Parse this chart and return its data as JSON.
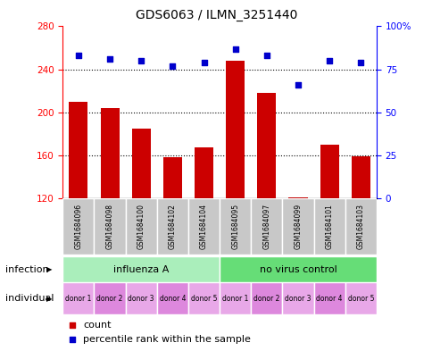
{
  "title": "GDS6063 / ILMN_3251440",
  "samples": [
    "GSM1684096",
    "GSM1684098",
    "GSM1684100",
    "GSM1684102",
    "GSM1684104",
    "GSM1684095",
    "GSM1684097",
    "GSM1684099",
    "GSM1684101",
    "GSM1684103"
  ],
  "counts": [
    210,
    204,
    185,
    158,
    167,
    248,
    218,
    121,
    170,
    159
  ],
  "percentiles": [
    83,
    81,
    80,
    77,
    79,
    87,
    83,
    66,
    80,
    79
  ],
  "ylim_left": [
    120,
    280
  ],
  "ylim_right": [
    0,
    100
  ],
  "yticks_left": [
    120,
    160,
    200,
    240,
    280
  ],
  "yticks_right": [
    0,
    25,
    50,
    75,
    100
  ],
  "infection_groups": [
    {
      "label": "influenza A",
      "start": 0,
      "end": 5,
      "color": "#AAEEBB"
    },
    {
      "label": "no virus control",
      "start": 5,
      "end": 10,
      "color": "#66DD77"
    }
  ],
  "individuals": [
    "donor 1",
    "donor 2",
    "donor 3",
    "donor 4",
    "donor 5",
    "donor 1",
    "donor 2",
    "donor 3",
    "donor 4",
    "donor 5"
  ],
  "individual_alt": [
    false,
    true,
    false,
    true,
    false,
    false,
    true,
    false,
    true,
    false
  ],
  "individual_color1": "#E8A8E8",
  "individual_color2": "#DD88DD",
  "bar_color": "#CC0000",
  "dot_color": "#0000CC",
  "bar_width": 0.6,
  "sample_bg": "#C8C8C8",
  "dotted_lines": [
    160,
    200,
    240
  ],
  "grid_dotted_color": "#000000"
}
